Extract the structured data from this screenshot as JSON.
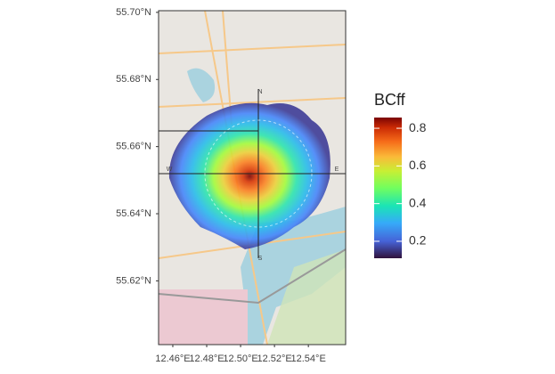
{
  "chart_data": {
    "type": "map",
    "legend_title": "BCff",
    "xlim": [
      12.4516,
      12.562
    ],
    "ylim": [
      55.601,
      55.7005
    ],
    "xticks": [
      {
        "value": 12.46,
        "label": "12.46°E"
      },
      {
        "value": 12.48,
        "label": "12.48°E"
      },
      {
        "value": 12.5,
        "label": "12.50°E"
      },
      {
        "value": 12.52,
        "label": "12.52°E"
      },
      {
        "value": 12.54,
        "label": "12.54°E"
      }
    ],
    "yticks": [
      {
        "value": 55.62,
        "label": "55.62°N"
      },
      {
        "value": 55.64,
        "label": "55.64°N"
      },
      {
        "value": 55.66,
        "label": "55.66°N"
      },
      {
        "value": 55.68,
        "label": "55.68°N"
      },
      {
        "value": 55.7,
        "label": "55.70°N"
      }
    ],
    "colorbar_lim": [
      0.11,
      0.857
    ],
    "colorbar_ticks": [
      0.2,
      0.4,
      0.6,
      0.8
    ],
    "compass": [
      "N",
      "E",
      "S",
      "W"
    ]
  }
}
